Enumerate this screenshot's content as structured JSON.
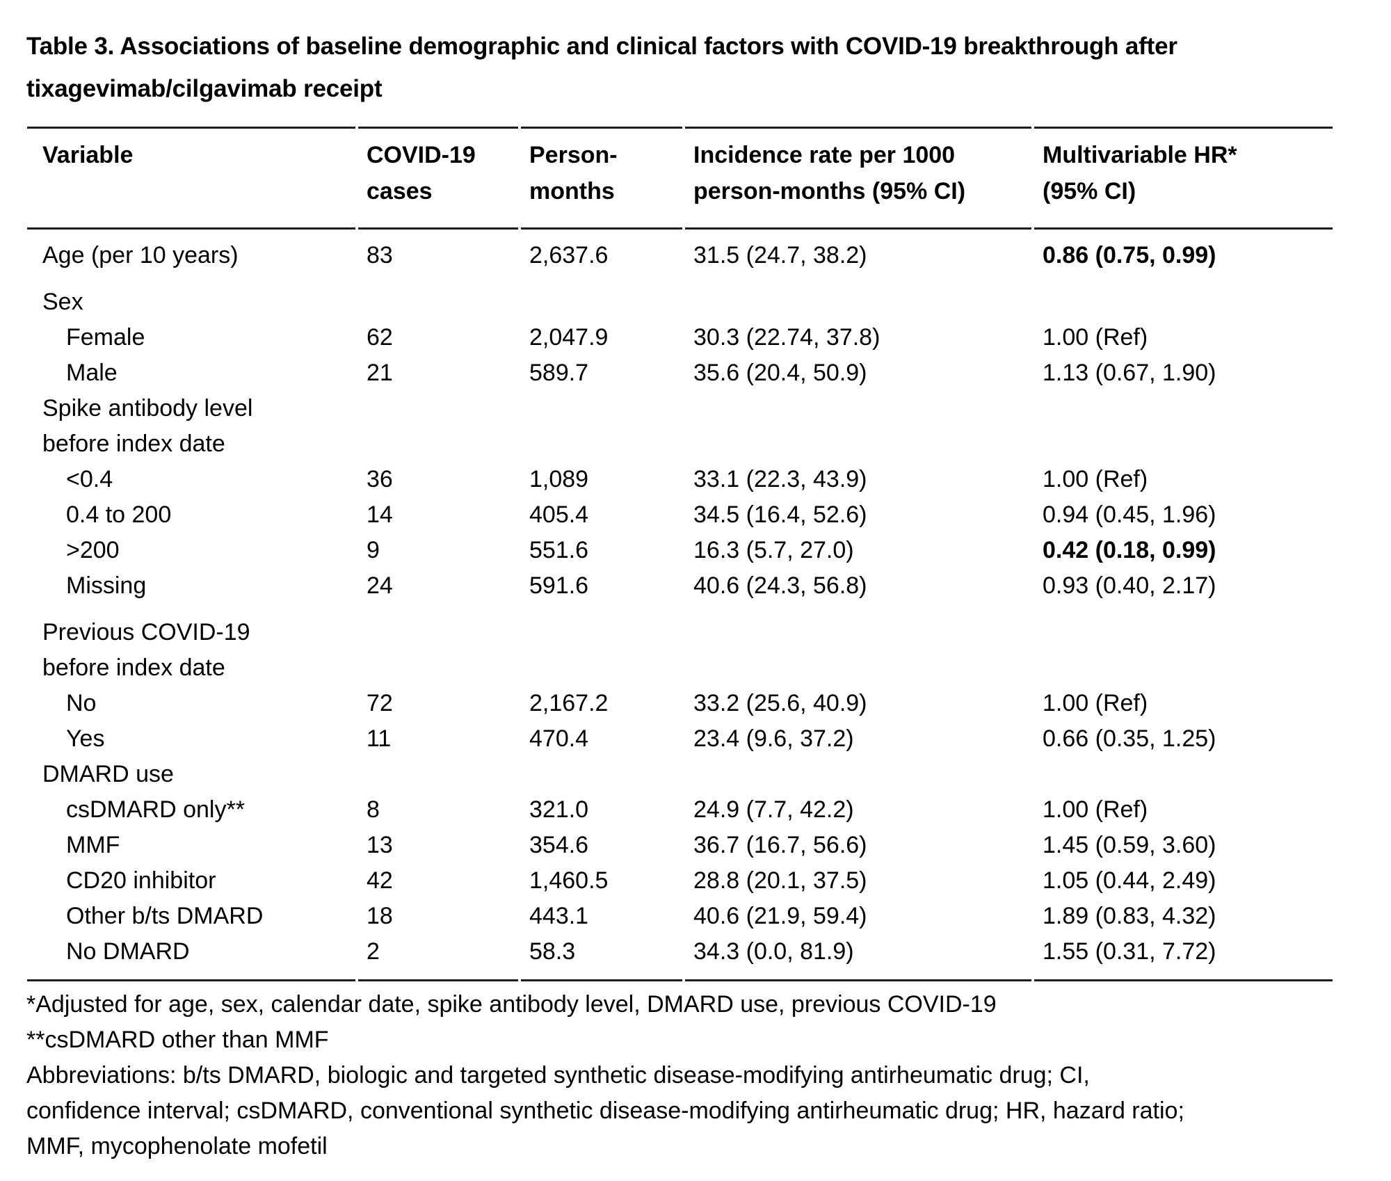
{
  "title": "Table 3. Associations of baseline demographic and clinical factors with COVID-19 breakthrough after\ntixagevimab/cilgavimab receipt",
  "colors": {
    "background": "#ffffff",
    "text": "#000000",
    "rule": "#1c1c1c"
  },
  "table": {
    "columns": [
      "Variable",
      "COVID-19\ncases",
      "Person-\nmonths",
      "Incidence rate per 1000\nperson-months (95% CI)",
      "Multivariable HR*\n(95% CI)"
    ],
    "rows": [
      {
        "label": "Age (per 10 years)",
        "group": false,
        "indent": false,
        "spacer": false,
        "cases": "83",
        "person_months": "2,637.6",
        "incidence_rate": "31.5 (24.7, 38.2)",
        "hr": "0.86 (0.75, 0.99)",
        "hr_bold": true
      },
      {
        "label": "Sex",
        "group": true,
        "indent": false,
        "spacer": true,
        "cases": "",
        "person_months": "",
        "incidence_rate": "",
        "hr": "",
        "hr_bold": false
      },
      {
        "label": "Female",
        "group": false,
        "indent": true,
        "spacer": false,
        "cases": "62",
        "person_months": "2,047.9",
        "incidence_rate": "30.3 (22.74, 37.8)",
        "hr": "1.00 (Ref)",
        "hr_bold": false
      },
      {
        "label": "Male",
        "group": false,
        "indent": true,
        "spacer": false,
        "cases": "21",
        "person_months": "589.7",
        "incidence_rate": "35.6 (20.4, 50.9)",
        "hr": "1.13 (0.67, 1.90)",
        "hr_bold": false
      },
      {
        "label": "Spike antibody level\nbefore index date",
        "group": true,
        "indent": false,
        "spacer": false,
        "cases": "",
        "person_months": "",
        "incidence_rate": "",
        "hr": "",
        "hr_bold": false
      },
      {
        "label": "<0.4",
        "group": false,
        "indent": true,
        "spacer": false,
        "cases": "36",
        "person_months": "1,089",
        "incidence_rate": "33.1 (22.3, 43.9)",
        "hr": "1.00 (Ref)",
        "hr_bold": false
      },
      {
        "label": "0.4 to 200",
        "group": false,
        "indent": true,
        "spacer": false,
        "cases": "14",
        "person_months": "405.4",
        "incidence_rate": "34.5 (16.4, 52.6)",
        "hr": "0.94 (0.45, 1.96)",
        "hr_bold": false
      },
      {
        "label": ">200",
        "group": false,
        "indent": true,
        "spacer": false,
        "cases": "9",
        "person_months": "551.6",
        "incidence_rate": "16.3 (5.7, 27.0)",
        "hr": "0.42 (0.18, 0.99)",
        "hr_bold": true
      },
      {
        "label": "Missing",
        "group": false,
        "indent": true,
        "spacer": false,
        "cases": "24",
        "person_months": "591.6",
        "incidence_rate": "40.6 (24.3, 56.8)",
        "hr": "0.93 (0.40, 2.17)",
        "hr_bold": false
      },
      {
        "label": "Previous COVID-19\nbefore index date",
        "group": true,
        "indent": false,
        "spacer": true,
        "cases": "",
        "person_months": "",
        "incidence_rate": "",
        "hr": "",
        "hr_bold": false
      },
      {
        "label": "No",
        "group": false,
        "indent": true,
        "spacer": false,
        "cases": "72",
        "person_months": "2,167.2",
        "incidence_rate": "33.2 (25.6, 40.9)",
        "hr": "1.00 (Ref)",
        "hr_bold": false
      },
      {
        "label": "Yes",
        "group": false,
        "indent": true,
        "spacer": false,
        "cases": "11",
        "person_months": "470.4",
        "incidence_rate": "23.4 (9.6, 37.2)",
        "hr": "0.66 (0.35, 1.25)",
        "hr_bold": false
      },
      {
        "label": "DMARD use",
        "group": true,
        "indent": false,
        "spacer": false,
        "cases": "",
        "person_months": "",
        "incidence_rate": "",
        "hr": "",
        "hr_bold": false
      },
      {
        "label": "csDMARD only**",
        "group": false,
        "indent": true,
        "spacer": false,
        "cases": "8",
        "person_months": "321.0",
        "incidence_rate": "24.9 (7.7, 42.2)",
        "hr": "1.00 (Ref)",
        "hr_bold": false
      },
      {
        "label": "MMF",
        "group": false,
        "indent": true,
        "spacer": false,
        "cases": "13",
        "person_months": "354.6",
        "incidence_rate": "36.7 (16.7, 56.6)",
        "hr": "1.45 (0.59, 3.60)",
        "hr_bold": false
      },
      {
        "label": "CD20 inhibitor",
        "group": false,
        "indent": true,
        "spacer": false,
        "cases": "42",
        "person_months": "1,460.5",
        "incidence_rate": "28.8 (20.1, 37.5)",
        "hr": "1.05 (0.44, 2.49)",
        "hr_bold": false
      },
      {
        "label": "Other b/ts DMARD",
        "group": false,
        "indent": true,
        "spacer": false,
        "cases": "18",
        "person_months": "443.1",
        "incidence_rate": "40.6 (21.9, 59.4)",
        "hr": "1.89 (0.83, 4.32)",
        "hr_bold": false
      },
      {
        "label": "No DMARD",
        "group": false,
        "indent": true,
        "spacer": false,
        "cases": "2",
        "person_months": "58.3",
        "incidence_rate": "34.3 (0.0, 81.9)",
        "hr": "1.55 (0.31, 7.72)",
        "hr_bold": false
      }
    ]
  },
  "footnotes": [
    "*Adjusted for age, sex, calendar date, spike antibody level, DMARD use, previous COVID-19",
    "**csDMARD other than MMF",
    "Abbreviations: b/ts DMARD, biologic and targeted synthetic disease-modifying antirheumatic drug; CI,\nconfidence interval; csDMARD, conventional synthetic disease-modifying antirheumatic drug; HR, hazard ratio;\nMMF, mycophenolate mofetil"
  ]
}
